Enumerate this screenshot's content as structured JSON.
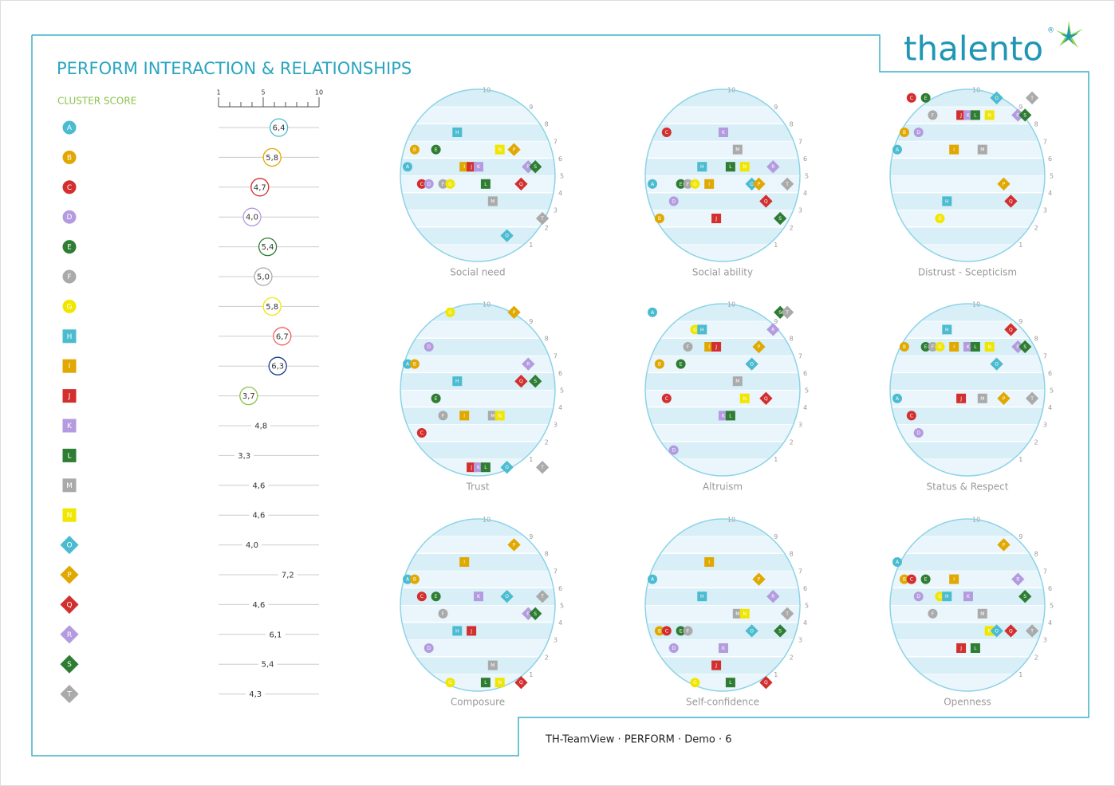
{
  "header": {
    "title": "PERFORM INTERACTION & RELATIONSHIPS",
    "logo": "thalento",
    "logo_mark": "®"
  },
  "cluster_score": {
    "label": "CLUSTER SCORE",
    "xlim": [
      1,
      10
    ],
    "xticks": [
      1,
      5,
      10
    ],
    "minor_ticks": [
      2,
      3,
      4,
      6,
      7,
      8,
      9
    ]
  },
  "members": [
    {
      "name": "A",
      "shape": "circle",
      "color": "#4bbcd0",
      "score": 6.4,
      "score_label": "6,4",
      "ring": "#4bbcd0"
    },
    {
      "name": "B",
      "shape": "circle",
      "color": "#e0a800",
      "score": 5.8,
      "score_label": "5,8",
      "ring": "#e0a800"
    },
    {
      "name": "C",
      "shape": "circle",
      "color": "#d32f2f",
      "score": 4.7,
      "score_label": "4,7",
      "ring": "#d32f2f"
    },
    {
      "name": "D",
      "shape": "circle",
      "color": "#b49be0",
      "score": 4.0,
      "score_label": "4,0",
      "ring": "#b49be0"
    },
    {
      "name": "E",
      "shape": "circle",
      "color": "#2e7d32",
      "score": 5.4,
      "score_label": "5,4",
      "ring": "#2e7d32"
    },
    {
      "name": "F",
      "shape": "circle",
      "color": "#aaaaaa",
      "score": 5.0,
      "score_label": "5,0",
      "ring": "#aaaaaa"
    },
    {
      "name": "G",
      "shape": "circle",
      "color": "#f0e600",
      "score": 5.8,
      "score_label": "5,8",
      "ring": "#f0e600"
    },
    {
      "name": "H",
      "shape": "square",
      "color": "#4bbcd0",
      "score": 6.7,
      "score_label": "6,7",
      "ring": "#f06060"
    },
    {
      "name": "I",
      "shape": "square",
      "color": "#e0a800",
      "score": 6.3,
      "score_label": "6,3",
      "ring": "#1a3a8a"
    },
    {
      "name": "J",
      "shape": "square",
      "color": "#d32f2f",
      "score": 3.7,
      "score_label": "3,7",
      "ring": "#8bc34a"
    },
    {
      "name": "K",
      "shape": "square",
      "color": "#b49be0",
      "score": 4.8,
      "score_label": "4,8"
    },
    {
      "name": "L",
      "shape": "square",
      "color": "#2e7d32",
      "score": 3.3,
      "score_label": "3,3"
    },
    {
      "name": "M",
      "shape": "square",
      "color": "#aaaaaa",
      "score": 4.6,
      "score_label": "4,6"
    },
    {
      "name": "N",
      "shape": "square",
      "color": "#f0e600",
      "score": 4.6,
      "score_label": "4,6"
    },
    {
      "name": "O",
      "shape": "diamond",
      "color": "#4bbcd0",
      "score": 4.0,
      "score_label": "4,0"
    },
    {
      "name": "P",
      "shape": "diamond",
      "color": "#e0a800",
      "score": 7.2,
      "score_label": "7,2"
    },
    {
      "name": "Q",
      "shape": "diamond",
      "color": "#d32f2f",
      "score": 4.6,
      "score_label": "4,6"
    },
    {
      "name": "R",
      "shape": "diamond",
      "color": "#b49be0",
      "score": 6.1,
      "score_label": "6,1"
    },
    {
      "name": "S",
      "shape": "diamond",
      "color": "#2e7d32",
      "score": 5.4,
      "score_label": "5,4"
    },
    {
      "name": "T",
      "shape": "diamond",
      "color": "#aaaaaa",
      "score": 4.3,
      "score_label": "4,3"
    }
  ],
  "levels": [
    1,
    2,
    3,
    4,
    5,
    6,
    7,
    8,
    9,
    10
  ],
  "ylim": [
    0.5,
    10.5
  ],
  "panels": [
    {
      "title": "Social need",
      "values": [
        6,
        7,
        5,
        5,
        7,
        5,
        5,
        8,
        6,
        6,
        6,
        5,
        4,
        7,
        2,
        7,
        5,
        6,
        6,
        3
      ]
    },
    {
      "title": "Social ability",
      "values": [
        5,
        3,
        8,
        4,
        5,
        5,
        5,
        6,
        5,
        3,
        8,
        6,
        7,
        6,
        5,
        5,
        4,
        6,
        3,
        5
      ]
    },
    {
      "title": "Distrust - Scepticism",
      "values": [
        7,
        8,
        10,
        8,
        10,
        9,
        3,
        4,
        7,
        9,
        9,
        9,
        7,
        9,
        10,
        5,
        4,
        9,
        9,
        10
      ]
    },
    {
      "title": "Trust",
      "values": [
        7,
        7,
        3,
        8,
        5,
        4,
        10,
        6,
        4,
        1,
        1,
        1,
        4,
        4,
        1,
        10,
        6,
        7,
        6,
        1
      ]
    },
    {
      "title": "Altruism",
      "values": [
        10,
        7,
        5,
        2,
        7,
        8,
        9,
        9,
        8,
        8,
        4,
        4,
        6,
        5,
        7,
        8,
        5,
        9,
        10,
        10
      ]
    },
    {
      "title": "Status & Respect",
      "values": [
        5,
        8,
        4,
        3,
        8,
        8,
        8,
        9,
        8,
        5,
        8,
        8,
        5,
        8,
        7,
        5,
        9,
        8,
        8,
        5
      ]
    },
    {
      "title": "Composure",
      "values": [
        7,
        7,
        6,
        3,
        6,
        5,
        1,
        4,
        8,
        4,
        6,
        1,
        2,
        1,
        6,
        9,
        1,
        5,
        5,
        6
      ]
    },
    {
      "title": "Self-confidence",
      "values": [
        7,
        4,
        4,
        3,
        4,
        4,
        1,
        6,
        8,
        2,
        3,
        1,
        5,
        5,
        4,
        7,
        1,
        6,
        4,
        5
      ]
    },
    {
      "title": "Openness",
      "values": [
        8,
        7,
        7,
        6,
        7,
        5,
        6,
        6,
        7,
        3,
        6,
        3,
        5,
        4,
        4,
        9,
        4,
        7,
        6,
        4
      ]
    }
  ],
  "footer": "TH-TeamView · PERFORM · Demo · 6"
}
